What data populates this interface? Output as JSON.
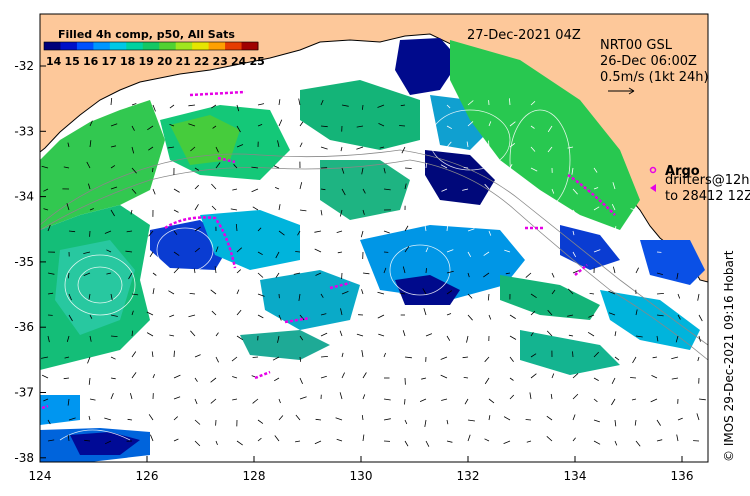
{
  "colorbar": {
    "title": "Filled 4h comp, p50, All Sats",
    "ticks": [
      "14",
      "15",
      "16",
      "17",
      "18",
      "19",
      "20",
      "21",
      "22",
      "23",
      "24",
      "25"
    ],
    "colors": [
      "#00007a",
      "#0010c8",
      "#0050ff",
      "#0096ff",
      "#00c8e6",
      "#00d2a0",
      "#14c864",
      "#50d232",
      "#a0e61e",
      "#e6e600",
      "#ffa000",
      "#e63c00",
      "#a00000"
    ]
  },
  "header": {
    "date": "27-Dec-2021 04Z",
    "current_title": "NRT00 GSL",
    "current_time": "26-Dec 06:00Z",
    "scale_label": "0.5m/s (1kt 24h)"
  },
  "legend": {
    "argo": "Argo",
    "drifters_line1": "drifters@12h",
    "drifters_line2": "to 28412 12Z"
  },
  "credit": "© IMOS 29-Dec-2021 09:16 Hobart",
  "axes": {
    "x_ticks": [
      "124",
      "126",
      "128",
      "130",
      "132",
      "134",
      "136"
    ],
    "y_ticks": [
      "-32",
      "-33",
      "-34",
      "-35",
      "-36",
      "-37",
      "-38"
    ]
  },
  "colors": {
    "land": "#fdc89a",
    "track": "#e600e6",
    "coast": "#000000"
  }
}
